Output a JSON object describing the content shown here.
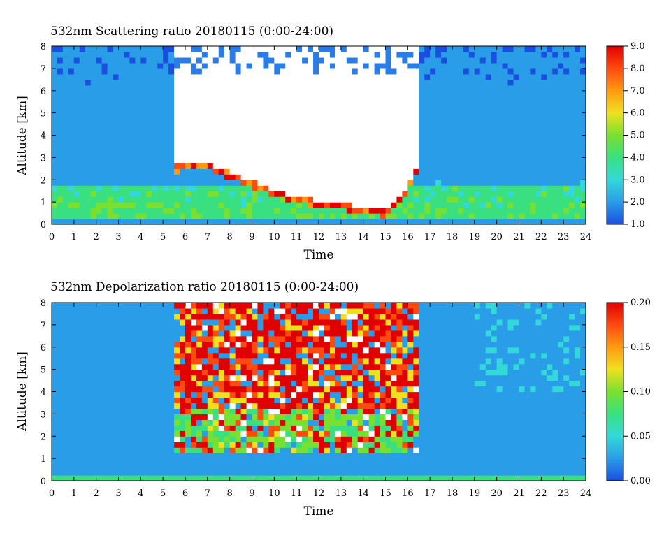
{
  "chart_data": [
    {
      "type": "heatmap",
      "title": "532nm Scattering ratio  20180115 (0:00-24:00)",
      "xlabel": "Time",
      "ylabel": "Altitude [km]",
      "xlim": [
        0,
        24
      ],
      "ylim": [
        0,
        8
      ],
      "x_ticks": [
        0,
        1,
        2,
        3,
        4,
        5,
        6,
        7,
        8,
        9,
        10,
        11,
        12,
        13,
        14,
        15,
        16,
        17,
        18,
        19,
        20,
        21,
        22,
        23,
        24
      ],
      "y_ticks": [
        0,
        1,
        2,
        3,
        4,
        5,
        6,
        7,
        8
      ],
      "colorbar": {
        "range": [
          1.0,
          9.0
        ],
        "ticks": [
          "1.0",
          "2.0",
          "3.0",
          "4.0",
          "5.0",
          "6.0",
          "7.0",
          "8.0",
          "9.0"
        ],
        "colors": [
          "#1a4fe0",
          "#2a9de8",
          "#33d8d8",
          "#3ae080",
          "#7ae030",
          "#f0e020",
          "#ff9a10",
          "#ff4a10",
          "#e00000"
        ]
      },
      "features": {
        "cloud_top_region_time": [
          5.4,
          16.4
        ],
        "cloud_base_km_approx": [
          {
            "t": 5.4,
            "z": 2.5
          },
          {
            "t": 7,
            "z": 2.6
          },
          {
            "t": 8,
            "z": 2.2
          },
          {
            "t": 9,
            "z": 1.8
          },
          {
            "t": 10,
            "z": 1.4
          },
          {
            "t": 11,
            "z": 1.1
          },
          {
            "t": 12,
            "z": 0.9
          },
          {
            "t": 13,
            "z": 0.8
          },
          {
            "t": 14,
            "z": 0.6
          },
          {
            "t": 15,
            "z": 0.5
          },
          {
            "t": 16,
            "z": 1.5
          },
          {
            "t": 16.4,
            "z": 2.5
          }
        ],
        "boundary_layer_top_km": 1.8,
        "boundary_layer_scattering_ratio": 4.5,
        "free_troposphere_scattering_ratio": 2.5
      }
    },
    {
      "type": "heatmap",
      "title": "532nm Depolarization ratio  20180115 (0:00-24:00)",
      "xlabel": "Time",
      "ylabel": "Altitude [km]",
      "xlim": [
        0,
        24
      ],
      "ylim": [
        0,
        8
      ],
      "x_ticks": [
        0,
        1,
        2,
        3,
        4,
        5,
        6,
        7,
        8,
        9,
        10,
        11,
        12,
        13,
        14,
        15,
        16,
        17,
        18,
        19,
        20,
        21,
        22,
        23,
        24
      ],
      "y_ticks": [
        0,
        1,
        2,
        3,
        4,
        5,
        6,
        7,
        8
      ],
      "colorbar": {
        "range": [
          0.0,
          0.2
        ],
        "ticks": [
          "0.00",
          "0.05",
          "0.10",
          "0.15",
          "0.20"
        ],
        "colors": [
          "#1a4fe0",
          "#2a9de8",
          "#33d8d8",
          "#3ae080",
          "#7ae030",
          "#f0e020",
          "#ff9a10",
          "#ff4a10",
          "#e00000"
        ]
      },
      "features": {
        "noisy_region_time": [
          5.4,
          16.4
        ],
        "cloud_depolarization": 0.09,
        "clear_air_depolarization": 0.03
      }
    }
  ]
}
